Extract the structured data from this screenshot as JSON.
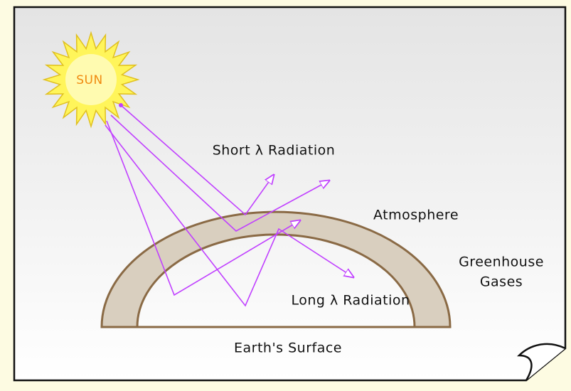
{
  "labels": {
    "sun": "SUN",
    "short_radiation": "Short λ Radiation",
    "atmosphere": "Atmosphere",
    "greenhouse": [
      "Greenhouse",
      "Gases"
    ],
    "long_radiation": "Long λ Radiation",
    "surface": "Earth's Surface"
  }
}
